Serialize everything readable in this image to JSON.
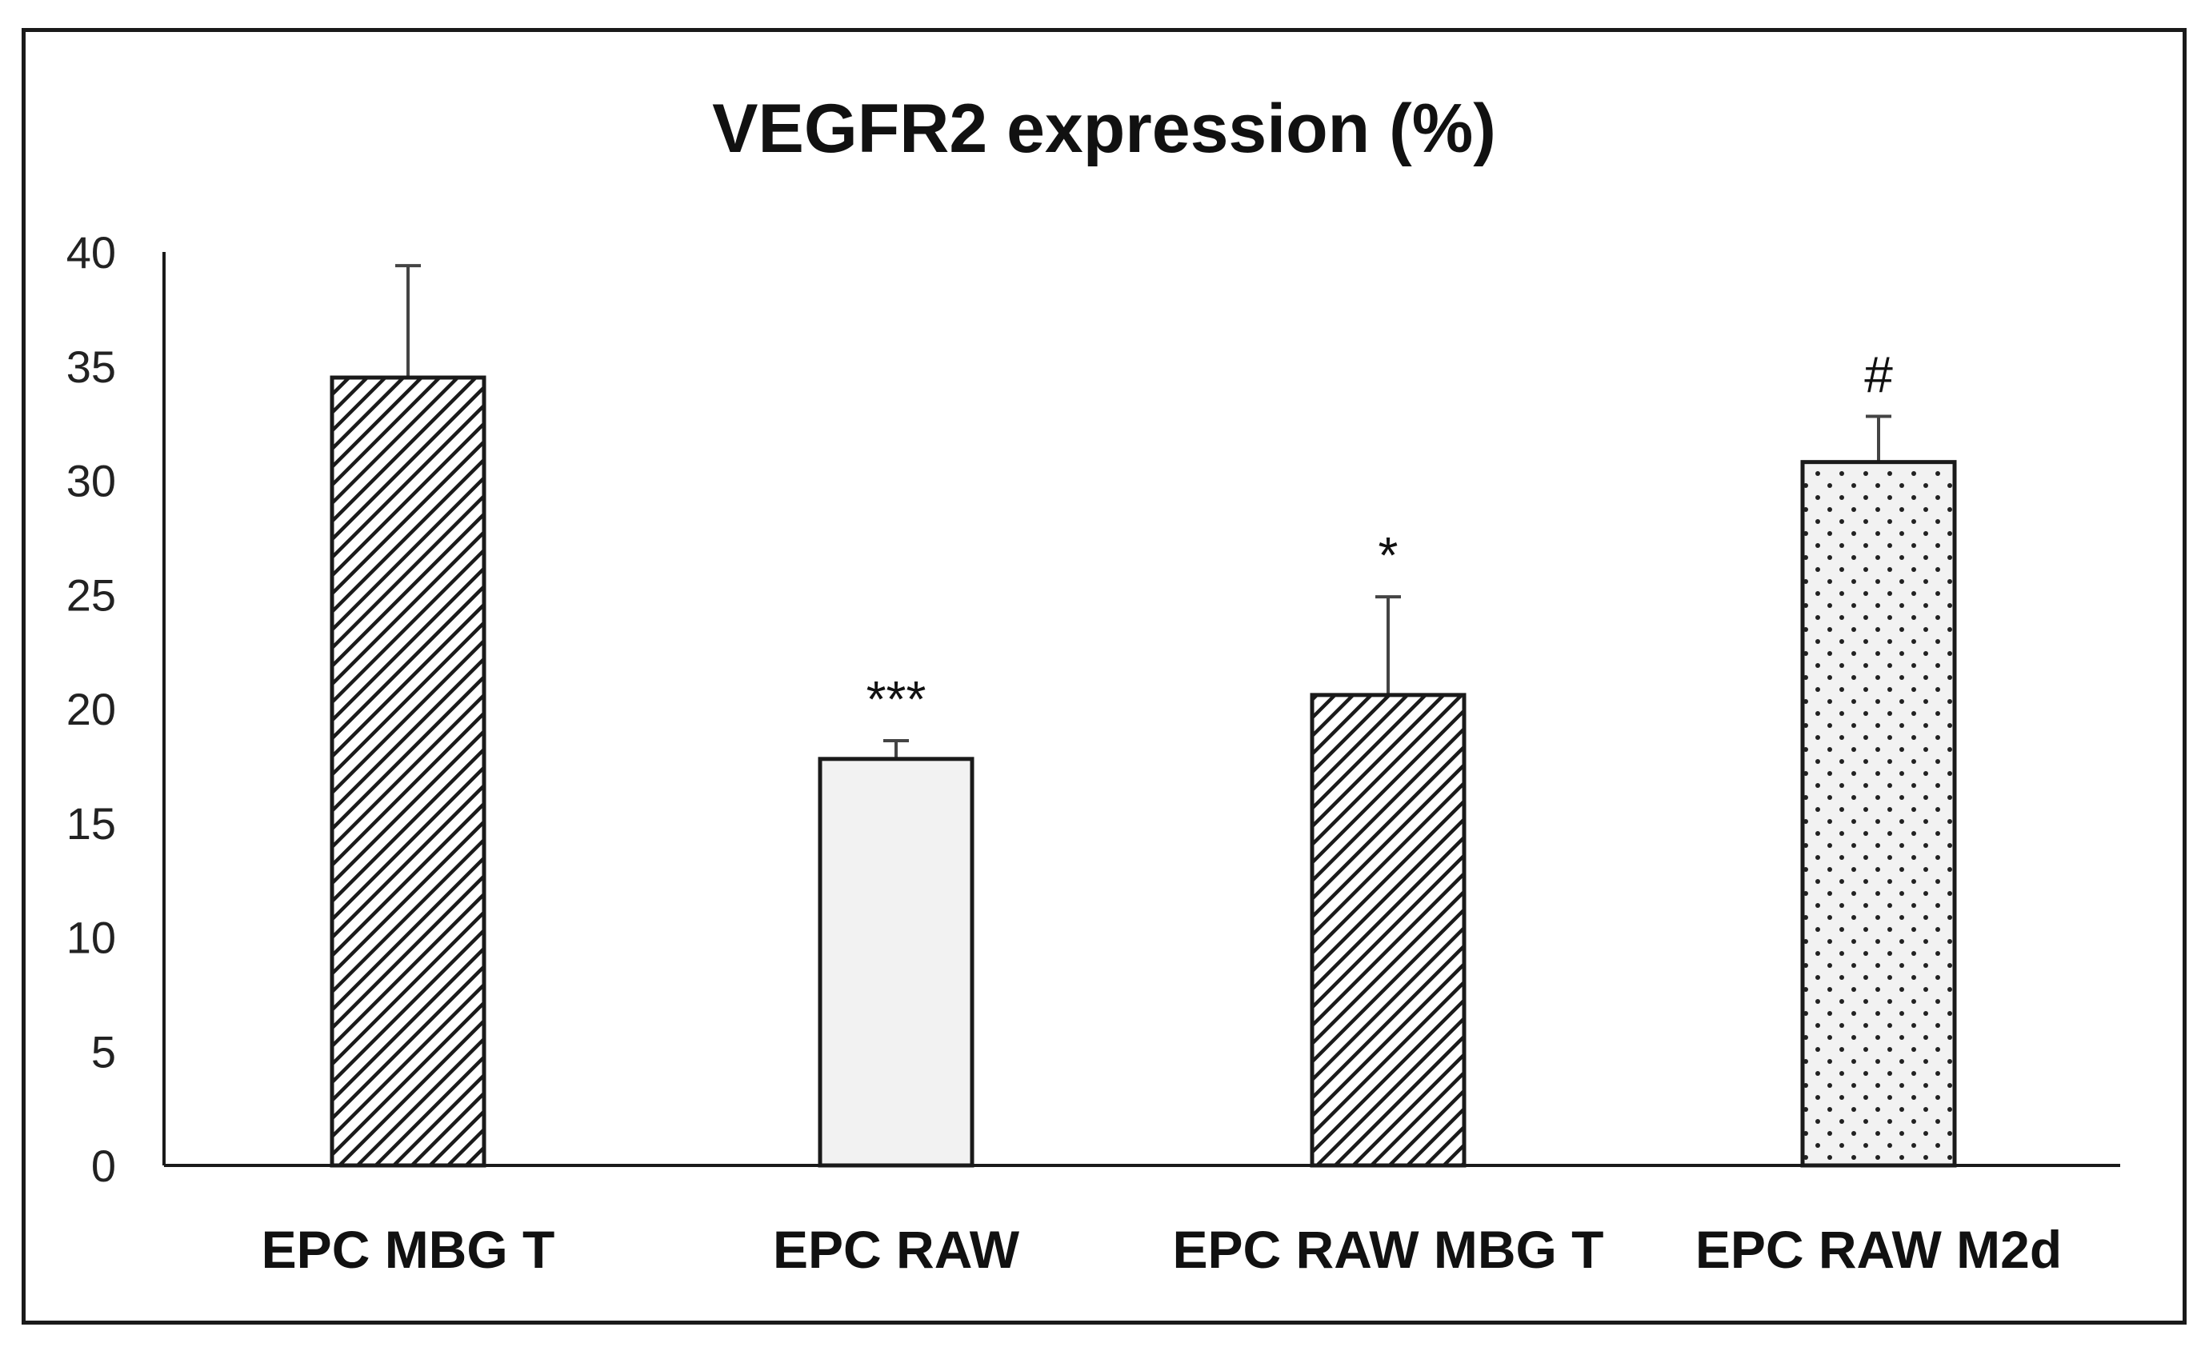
{
  "chart_data": {
    "type": "bar",
    "title": "VEGFR2 expression (%)",
    "xlabel": "",
    "ylabel": "",
    "ylim": [
      0,
      40
    ],
    "yticks": [
      0,
      5,
      10,
      15,
      20,
      25,
      30,
      35,
      40
    ],
    "categories": [
      "EPC MBG T",
      "EPC RAW",
      "EPC RAW MBG T",
      "EPC RAW M2d"
    ],
    "values": [
      34.5,
      17.8,
      20.6,
      30.8
    ],
    "error_upper": [
      4.9,
      0.8,
      4.3,
      2.0
    ],
    "significance": [
      "",
      "***",
      "*",
      "#"
    ],
    "fill_patterns": [
      "dense-diagonal",
      "light-solid",
      "dense-diagonal",
      "dotted"
    ],
    "grid": false,
    "legend": "none"
  }
}
